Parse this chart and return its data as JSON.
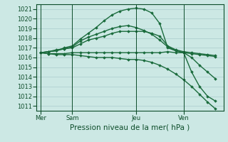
{
  "bg_color": "#cce8e4",
  "grid_color": "#aacccc",
  "line_color": "#1a6b3c",
  "dark_line_color": "#0d4d2a",
  "ylim": [
    1010.5,
    1021.5
  ],
  "yticks": [
    1011,
    1012,
    1013,
    1014,
    1015,
    1016,
    1017,
    1018,
    1019,
    1020,
    1021
  ],
  "xlabel": "Pression niveau de la mer( hPa )",
  "xtick_labels": [
    "Mer",
    "Sam",
    "Jeu",
    "Ven"
  ],
  "xtick_positions": [
    0,
    4,
    12,
    18
  ],
  "vlines": [
    0,
    4,
    12,
    18
  ],
  "xlim": [
    -0.5,
    23
  ],
  "series": [
    {
      "x": [
        0,
        1,
        2,
        3,
        4,
        5,
        6,
        7,
        8,
        9,
        10,
        11,
        12,
        13,
        14,
        15,
        16,
        17,
        18,
        19,
        20,
        21,
        22
      ],
      "y": [
        1016.5,
        1016.4,
        1016.4,
        1016.4,
        1016.5,
        1016.5,
        1016.5,
        1016.5,
        1016.5,
        1016.5,
        1016.5,
        1016.5,
        1016.5,
        1016.5,
        1016.5,
        1016.5,
        1016.6,
        1016.5,
        1016.5,
        1016.4,
        1016.3,
        1016.2,
        1016.1
      ],
      "marker": "D",
      "markersize": 1.8,
      "linewidth": 1.0
    },
    {
      "x": [
        0,
        1,
        2,
        3,
        4,
        5,
        6,
        7,
        8,
        9,
        10,
        11,
        12,
        13,
        14,
        15,
        16,
        17,
        18,
        19,
        20,
        21,
        22
      ],
      "y": [
        1016.5,
        1016.6,
        1016.8,
        1016.9,
        1017.0,
        1017.4,
        1017.8,
        1018.0,
        1018.2,
        1018.5,
        1018.7,
        1018.7,
        1018.7,
        1018.7,
        1018.5,
        1018.2,
        1017.2,
        1016.8,
        1016.6,
        1016.5,
        1016.4,
        1016.3,
        1016.2
      ],
      "marker": "D",
      "markersize": 1.8,
      "linewidth": 1.0
    },
    {
      "x": [
        0,
        1,
        2,
        3,
        4,
        5,
        6,
        7,
        8,
        9,
        10,
        11,
        12,
        13,
        14,
        15,
        16,
        17,
        18,
        19,
        20,
        21,
        22
      ],
      "y": [
        1016.5,
        1016.6,
        1016.7,
        1016.9,
        1017.1,
        1017.7,
        1018.1,
        1018.4,
        1018.7,
        1019.0,
        1019.2,
        1019.3,
        1019.1,
        1018.8,
        1018.4,
        1017.8,
        1017.1,
        1016.7,
        1016.5,
        1016.0,
        1015.2,
        1014.5,
        1013.8
      ],
      "marker": "D",
      "markersize": 1.8,
      "linewidth": 1.0
    },
    {
      "x": [
        0,
        1,
        2,
        3,
        4,
        5,
        6,
        7,
        8,
        9,
        10,
        11,
        12,
        13,
        14,
        15,
        16,
        17,
        18,
        19,
        20,
        21,
        22
      ],
      "y": [
        1016.5,
        1016.6,
        1016.7,
        1017.0,
        1017.2,
        1017.9,
        1018.5,
        1019.1,
        1019.8,
        1020.4,
        1020.8,
        1021.0,
        1021.1,
        1021.0,
        1020.6,
        1019.5,
        1017.0,
        1016.7,
        1016.5,
        1014.5,
        1013.0,
        1012.0,
        1011.5
      ],
      "marker": "D",
      "markersize": 1.8,
      "linewidth": 1.0
    },
    {
      "x": [
        0,
        1,
        2,
        3,
        4,
        5,
        6,
        7,
        8,
        9,
        10,
        11,
        12,
        13,
        14,
        15,
        16,
        17,
        18,
        19,
        20,
        21,
        22
      ],
      "y": [
        1016.5,
        1016.4,
        1016.3,
        1016.3,
        1016.3,
        1016.2,
        1016.1,
        1016.0,
        1016.0,
        1016.0,
        1015.9,
        1015.8,
        1015.8,
        1015.7,
        1015.5,
        1015.2,
        1014.8,
        1014.3,
        1013.7,
        1013.0,
        1012.2,
        1011.4,
        1010.7
      ],
      "marker": "D",
      "markersize": 1.8,
      "linewidth": 1.0
    }
  ],
  "xlabel_fontsize": 7.5,
  "tick_fontsize": 6.0
}
